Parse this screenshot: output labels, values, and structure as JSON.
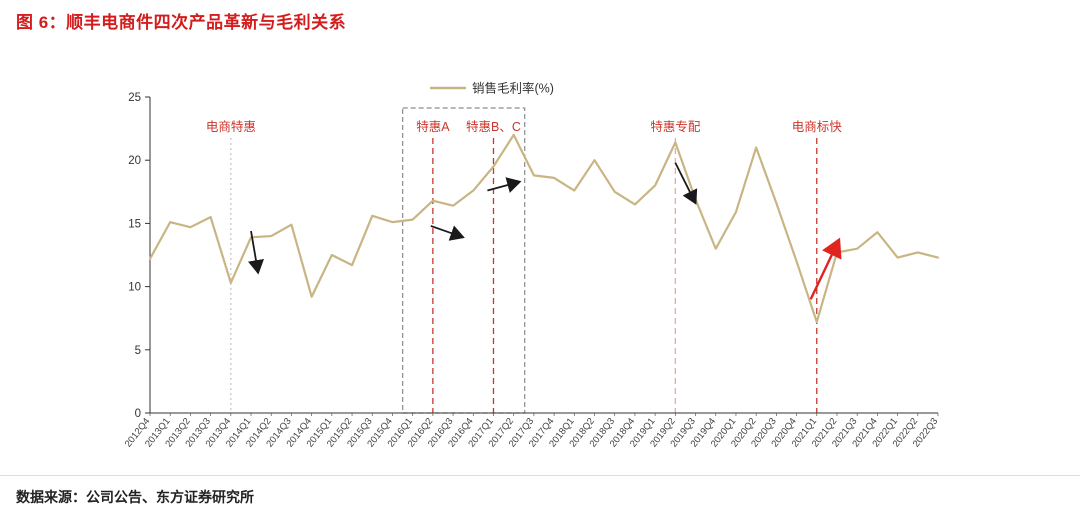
{
  "page": {
    "title": "图 6：顺丰电商件四次产品革新与毛利关系",
    "source": "数据来源：公司公告、东方证券研究所"
  },
  "chart_data": {
    "type": "line",
    "title": "图 6：顺丰电商件四次产品革新与毛利关系",
    "legend_label": "销售毛利率(%)",
    "ylim": [
      0,
      25
    ],
    "yticks": [
      0,
      5,
      10,
      15,
      20,
      25
    ],
    "grid": false,
    "legend_position": "top-center",
    "categories": [
      "2012Q4",
      "2013Q1",
      "2013Q2",
      "2013Q3",
      "2013Q4",
      "2014Q1",
      "2014Q2",
      "2014Q3",
      "2014Q4",
      "2015Q1",
      "2015Q2",
      "2015Q3",
      "2015Q4",
      "2016Q1",
      "2016Q2",
      "2016Q3",
      "2016Q4",
      "2017Q1",
      "2017Q2",
      "2017Q3",
      "2017Q4",
      "2018Q1",
      "2018Q2",
      "2018Q3",
      "2018Q4",
      "2019Q1",
      "2019Q2",
      "2019Q3",
      "2019Q4",
      "2020Q1",
      "2020Q2",
      "2020Q3",
      "2020Q4",
      "2021Q1",
      "2021Q2",
      "2021Q3",
      "2021Q4",
      "2022Q1",
      "2022Q2",
      "2022Q3"
    ],
    "series": [
      {
        "name": "销售毛利率(%)",
        "color": "#C9B584",
        "values": [
          12.2,
          15.1,
          14.7,
          15.5,
          10.3,
          13.9,
          14.0,
          14.9,
          9.2,
          12.5,
          11.7,
          15.6,
          15.1,
          15.3,
          16.8,
          16.4,
          17.6,
          19.5,
          22.0,
          18.8,
          18.6,
          17.6,
          20.0,
          17.5,
          16.5,
          18.0,
          21.4,
          16.9,
          13.0,
          15.9,
          21.0,
          16.6,
          12.0,
          7.2,
          12.7,
          13.0,
          14.3,
          12.3,
          12.7,
          12.3
        ]
      }
    ],
    "annotations": {
      "vlines": [
        {
          "label": "电商特惠",
          "category": "2013Q4",
          "line": "dotted",
          "line_color": "#c8c8c8",
          "label_color": "#cf352a"
        },
        {
          "label": "特惠A",
          "category": "2016Q2",
          "line": "dashed",
          "line_color": "#c5372b",
          "label_color": "#cf352a"
        },
        {
          "label": "特惠B、C",
          "category": "2017Q1",
          "line": "dashed",
          "line_color": "#c5372b",
          "label_color": "#cf352a"
        },
        {
          "label": "特惠专配",
          "category": "2019Q2",
          "line": "dashed",
          "line_color": "#eaa9a2",
          "label_color": "#cf352a"
        },
        {
          "label": "电商标快",
          "category": "2021Q1",
          "line": "dashed",
          "line_color": "#c5372b",
          "label_color": "#cf352a"
        }
      ],
      "box": {
        "from_category": "2016Q1",
        "to_category": "2017Q2",
        "line": "dashed",
        "color": "#8c8c8c"
      },
      "arrows": [
        {
          "from": [
            5.0,
            14.4
          ],
          "to": [
            5.35,
            11.1
          ],
          "color": "#1a1a1a"
        },
        {
          "from": [
            13.9,
            14.8
          ],
          "to": [
            15.5,
            13.9
          ],
          "color": "#1a1a1a"
        },
        {
          "from": [
            16.7,
            17.6
          ],
          "to": [
            18.3,
            18.3
          ],
          "color": "#1a1a1a"
        },
        {
          "from": [
            26.0,
            19.8
          ],
          "to": [
            27.0,
            16.6
          ],
          "color": "#1a1a1a"
        },
        {
          "from": [
            32.7,
            9.0
          ],
          "to": [
            34.1,
            13.7
          ],
          "color": "#e02420"
        }
      ]
    }
  }
}
